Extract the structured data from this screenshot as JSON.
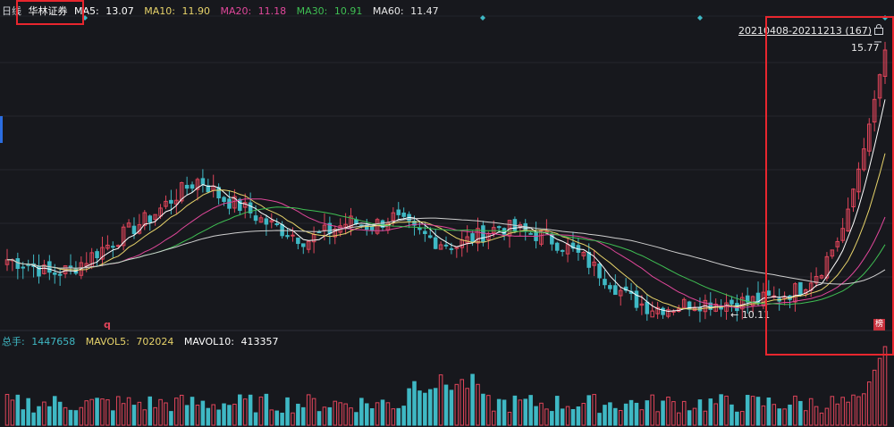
{
  "legend": {
    "period": "日线",
    "stock_name": "华林证券",
    "ma5_label": "MA5:",
    "ma5_value": "13.07",
    "ma10_label": "MA10:",
    "ma10_value": "11.90",
    "ma20_label": "MA20:",
    "ma20_value": "11.18",
    "ma30_label": "MA30:",
    "ma30_value": "10.91",
    "ma60_label": "MA60:",
    "ma60_value": "11.47"
  },
  "volume_legend": {
    "total_label": "总手:",
    "total_value": "1447658",
    "mavol5_label": "MAVOL5:",
    "mavol5_value": "702024",
    "mavol10_label": "MAVOL10:",
    "mavol10_value": "413357"
  },
  "range_label": "20210408-20211213 (167)",
  "price_high_label": "15.77",
  "price_low_label": "10.11",
  "marker_q": "q",
  "marker_bang": "榜",
  "colors": {
    "background": "#17181d",
    "up": "#e0455a",
    "down": "#3fb8c4",
    "ma5": "#ffffff",
    "ma10": "#e7d36a",
    "ma20": "#e0479a",
    "ma30": "#3fbf53",
    "ma60": "#cfcfcf",
    "highlight": "#e8262e"
  },
  "chart_data": {
    "type": "candlestick",
    "symbol": "华林证券",
    "range": "20210408-20211213",
    "count": 167,
    "annotated_high": 15.77,
    "annotated_low": 10.11,
    "ma_latest": {
      "MA5": 13.07,
      "MA10": 11.9,
      "MA20": 11.18,
      "MA30": 10.91,
      "MA60": 11.47
    },
    "close_profile": [
      11.2,
      11.1,
      10.9,
      11.0,
      11.3,
      11.6,
      11.9,
      12.2,
      12.6,
      12.9,
      12.5,
      12.3,
      12.0,
      11.8,
      11.6,
      11.8,
      12.0,
      11.9,
      12.1,
      11.8,
      11.6,
      11.5,
      11.7,
      11.9,
      11.8,
      11.7,
      11.5,
      11.2,
      10.8,
      10.4,
      10.2,
      10.2,
      10.3,
      10.3,
      10.3,
      10.35,
      10.4,
      10.6,
      11.0,
      11.8,
      13.5,
      15.6
    ],
    "volume_latest": {
      "total": 1447658,
      "MAVOL5": 702024,
      "MAVOL10": 413357
    }
  }
}
